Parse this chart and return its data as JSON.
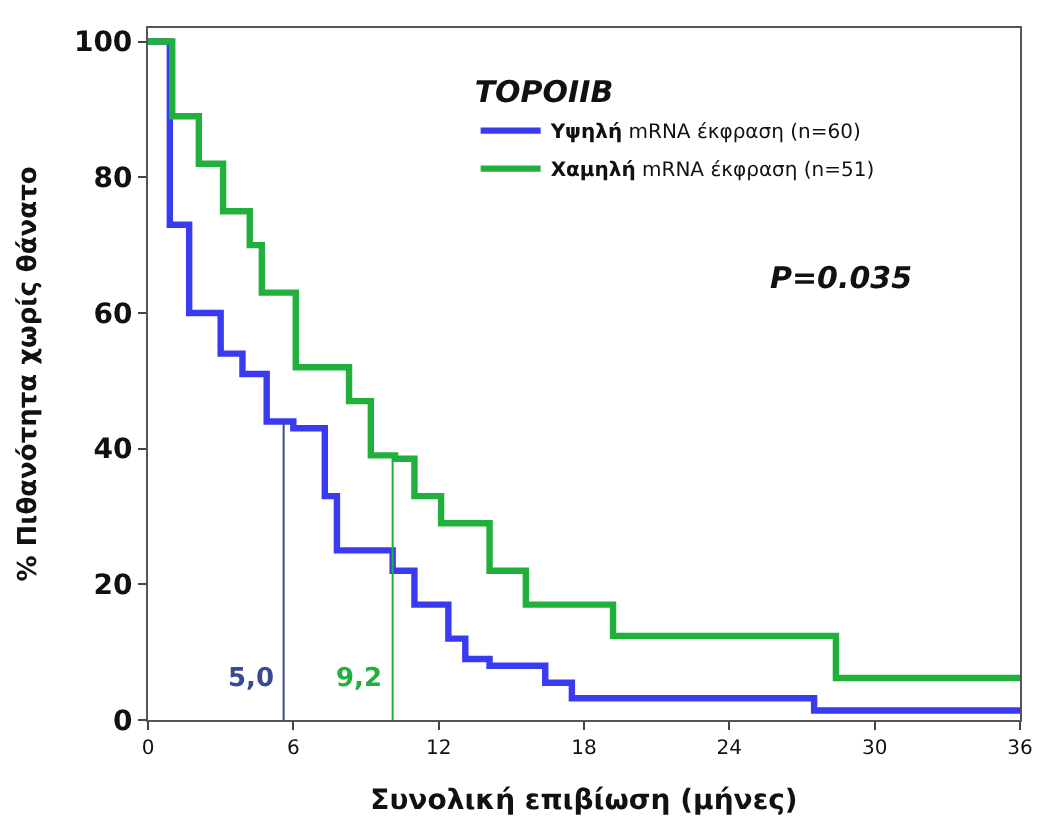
{
  "chart_data": {
    "type": "step",
    "xlabel": "Συνολική επιβίωση (μήνες)",
    "ylabel": "% Πιθανότητα χωρίς θάνατο",
    "legend_title": "TOPOIIB",
    "xlim": [
      0,
      36
    ],
    "xticks": [
      0,
      6,
      12,
      18,
      24,
      30,
      36
    ],
    "ylim": [
      0,
      102
    ],
    "yticks": [
      0,
      20,
      40,
      60,
      80,
      100
    ],
    "legend": "top right",
    "marker": "none",
    "line_style": "solid",
    "series": [
      {
        "name": "Υψηλή mRNA έκφραση (n=60)",
        "color": "#3a3af0",
        "x": [
          0,
          0.9,
          1.7,
          3.0,
          3.9,
          4.9,
          6.0,
          7.3,
          7.8,
          10.1,
          11.0,
          12.4,
          13.1,
          14.1,
          16.4,
          17.5,
          27.5,
          36
        ],
        "values": [
          100,
          73,
          60,
          54,
          51,
          44,
          43,
          33,
          25,
          22,
          17,
          12,
          9,
          8,
          5.5,
          3.2,
          1.4,
          1.4
        ]
      },
      {
        "name": "Χαμηλή mRNA έκφραση (n=51)",
        "color": "#22b03c",
        "x": [
          0,
          1.0,
          2.1,
          3.1,
          4.2,
          4.7,
          6.1,
          8.3,
          9.2,
          10.2,
          11.0,
          12.1,
          14.1,
          15.6,
          19.2,
          28.4,
          36
        ],
        "values": [
          100,
          89,
          82,
          75,
          70,
          63,
          52,
          47,
          39,
          38.5,
          33,
          29,
          22,
          17,
          12.4,
          6.2,
          6.2
        ]
      }
    ],
    "ref_lines": [
      {
        "axis": "x",
        "value": 5.6,
        "color": "#3a4a90"
      },
      {
        "axis": "x",
        "value": 10.1,
        "color": "#22b03c"
      }
    ],
    "annotations": [
      {
        "text": "5,0",
        "x": 5.6,
        "y": 6
      },
      {
        "text": "9,2",
        "x": 10.1,
        "y": 6
      },
      "P=0.035"
    ]
  }
}
